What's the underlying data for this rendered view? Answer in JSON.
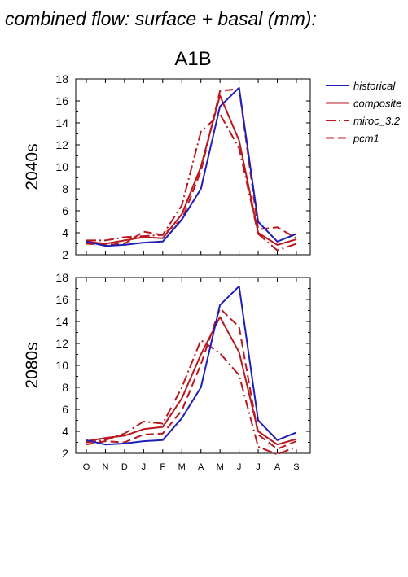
{
  "title": "combined flow: surface + basal (mm):",
  "colors": {
    "historical": "#1f1fb8",
    "model": "#b8181e"
  },
  "legend": [
    {
      "name": "historical",
      "dash": "solid",
      "color": "#1f1fb8"
    },
    {
      "name": "composite",
      "dash": "solid",
      "color": "#b8181e"
    },
    {
      "name": "miroc_3.2",
      "dash": "dashdot",
      "color": "#b8181e"
    },
    {
      "name": "pcm1",
      "dash": "dash",
      "color": "#b8181e"
    }
  ],
  "chart_data": [
    {
      "type": "line",
      "title": "A1B",
      "ylabel": "2040s",
      "xlabel": "",
      "categories": [
        "O",
        "N",
        "D",
        "J",
        "F",
        "M",
        "A",
        "M",
        "J",
        "J",
        "A",
        "S"
      ],
      "ylim": [
        2,
        18
      ],
      "yticks": [
        2,
        4,
        6,
        8,
        10,
        12,
        14,
        16,
        18
      ],
      "series": [
        {
          "name": "historical",
          "values": [
            3.2,
            2.8,
            2.9,
            3.1,
            3.2,
            5.2,
            8.0,
            15.5,
            17.2,
            5.0,
            3.2,
            3.9
          ]
        },
        {
          "name": "composite",
          "values": [
            3.2,
            3.0,
            3.3,
            3.6,
            3.5,
            5.7,
            10.0,
            16.5,
            12.4,
            4.0,
            2.9,
            3.4
          ]
        },
        {
          "name": "miroc_3.2",
          "values": [
            3.3,
            3.3,
            3.6,
            3.7,
            3.8,
            6.5,
            13.2,
            14.8,
            11.7,
            3.9,
            2.4,
            3.0
          ]
        },
        {
          "name": "pcm1",
          "values": [
            3.0,
            2.9,
            3.0,
            4.1,
            3.8,
            5.2,
            9.6,
            16.9,
            17.1,
            4.3,
            4.5,
            3.5
          ]
        }
      ]
    },
    {
      "type": "line",
      "title": "",
      "ylabel": "2080s",
      "xlabel": "",
      "categories": [
        "O",
        "N",
        "D",
        "J",
        "F",
        "M",
        "A",
        "M",
        "J",
        "J",
        "A",
        "S"
      ],
      "ylim": [
        2,
        18
      ],
      "yticks": [
        2,
        4,
        6,
        8,
        10,
        12,
        14,
        16,
        18
      ],
      "series": [
        {
          "name": "historical",
          "values": [
            3.2,
            2.8,
            2.9,
            3.1,
            3.2,
            5.2,
            8.0,
            15.5,
            17.2,
            5.0,
            3.2,
            3.9
          ]
        },
        {
          "name": "composite",
          "values": [
            3.1,
            3.4,
            3.6,
            4.2,
            4.4,
            7.0,
            11.0,
            14.4,
            11.2,
            4.0,
            2.8,
            3.3
          ]
        },
        {
          "name": "miroc_3.2",
          "values": [
            3.0,
            3.2,
            3.8,
            4.9,
            4.7,
            8.0,
            12.3,
            11.1,
            9.1,
            2.6,
            1.9,
            2.6
          ]
        },
        {
          "name": "pcm1",
          "values": [
            2.8,
            3.1,
            3.0,
            3.7,
            3.8,
            5.9,
            10.1,
            15.2,
            13.5,
            3.7,
            2.4,
            3.1
          ]
        }
      ]
    }
  ]
}
